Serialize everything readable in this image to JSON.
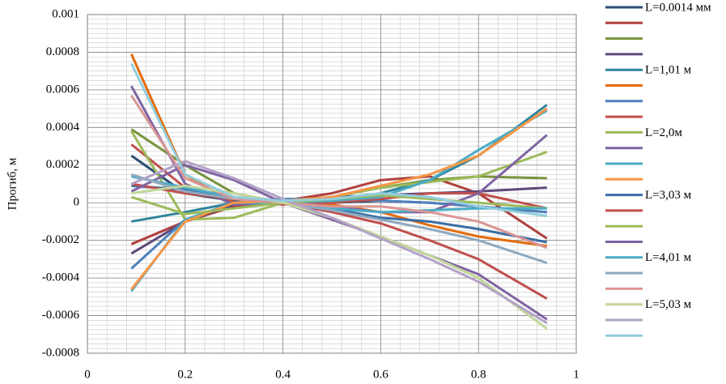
{
  "chart_data": {
    "type": "line",
    "y_label": "Прогиб, м",
    "x": [
      0.09,
      0.2,
      0.3,
      0.4,
      0.5,
      0.6,
      0.7,
      0.8,
      0.94
    ],
    "xlim": [
      0,
      1
    ],
    "xticks": [
      0,
      0.2,
      0.4,
      0.6,
      0.8,
      1
    ],
    "ylim": [
      -0.0008,
      0.001
    ],
    "yticks": [
      -0.0008,
      -0.0006,
      -0.0004,
      -0.0002,
      0,
      0.0002,
      0.0004,
      0.0006,
      0.0008,
      0.001
    ],
    "grid": true,
    "minor_grid": true,
    "legend": "right",
    "series": [
      {
        "name": "L=0.0014 мм",
        "color": "#2c4d75",
        "values": [
          0.00025,
          5e-05,
          1e-05,
          0,
          0,
          1e-05,
          0,
          -2e-05,
          -5e-05
        ]
      },
      {
        "name": null,
        "color": "#b0413e",
        "values": [
          -0.00022,
          -0.0001,
          -2e-05,
          1e-05,
          5e-05,
          0.00012,
          0.00014,
          5e-05,
          -0.00019
        ]
      },
      {
        "name": null,
        "color": "#77933c",
        "values": [
          0.00039,
          0.0002,
          5e-05,
          0,
          3e-05,
          8e-05,
          0.00012,
          0.00014,
          0.00013
        ]
      },
      {
        "name": null,
        "color": "#5f497a",
        "values": [
          -0.00027,
          -0.0001,
          -1e-05,
          1e-05,
          3e-05,
          4e-05,
          5e-05,
          6e-05,
          8e-05
        ]
      },
      {
        "name": "L=1,01 м",
        "color": "#31859c",
        "values": [
          -0.0001,
          -5e-05,
          0,
          1e-05,
          2e-05,
          5e-05,
          0.00012,
          0.00025,
          0.00052
        ]
      },
      {
        "name": null,
        "color": "#e46c0a",
        "values": [
          0.00079,
          0.00015,
          0,
          0,
          -1e-05,
          -5e-05,
          -0.00012,
          -0.00018,
          -0.00023
        ]
      },
      {
        "name": null,
        "color": "#4f81bd",
        "values": [
          -0.00035,
          -9e-05,
          0,
          2e-05,
          2e-05,
          1e-05,
          0,
          -2e-05,
          -5e-05
        ]
      },
      {
        "name": null,
        "color": "#c0504d",
        "values": [
          0.00031,
          8e-05,
          0,
          -1e-05,
          0,
          2e-05,
          5e-05,
          5e-05,
          -3e-05
        ]
      },
      {
        "name": "L=2,0м",
        "color": "#9bbb59",
        "values": [
          0.00038,
          -9e-05,
          -8e-05,
          0,
          3e-05,
          8e-05,
          0.00011,
          0.00014,
          0.00027
        ]
      },
      {
        "name": null,
        "color": "#8064a2",
        "values": [
          0.00062,
          0.0001,
          -1e-05,
          0,
          -2e-05,
          -5e-05,
          -5e-05,
          5e-05,
          0.00036
        ]
      },
      {
        "name": null,
        "color": "#4bacc6",
        "values": [
          -0.00047,
          -9e-05,
          0,
          0,
          1e-05,
          3e-05,
          0.00012,
          0.00028,
          0.00049
        ]
      },
      {
        "name": null,
        "color": "#f79646",
        "values": [
          -0.00046,
          -0.0001,
          0,
          1e-05,
          3e-05,
          9e-05,
          0.00015,
          0.00025,
          0.0005
        ]
      },
      {
        "name": "L=3,03 м",
        "color": "#3a6ea5",
        "values": [
          9e-05,
          7e-05,
          3e-05,
          0,
          -3e-05,
          -8e-05,
          -0.0001,
          -0.00014,
          -0.00021
        ]
      },
      {
        "name": null,
        "color": "#c0504d",
        "values": [
          0.0001,
          5e-05,
          2e-05,
          0,
          -5e-05,
          -0.00011,
          -0.0002,
          -0.0003,
          -0.00051
        ]
      },
      {
        "name": null,
        "color": "#9bbb59",
        "values": [
          3e-05,
          -6e-05,
          -3e-05,
          0,
          2e-05,
          4e-05,
          2e-05,
          0,
          -3e-05
        ]
      },
      {
        "name": null,
        "color": "#8064a2",
        "values": [
          6e-05,
          0.0002,
          0.00012,
          0,
          -9e-05,
          -0.00018,
          -0.00028,
          -0.00038,
          -0.00062
        ]
      },
      {
        "name": "L=4,01 м",
        "color": "#4bacc6",
        "values": [
          0.00014,
          8e-05,
          3e-05,
          0,
          -3e-05,
          -5e-05,
          -4e-05,
          -3e-05,
          -3e-05
        ]
      },
      {
        "name": null,
        "color": "#8ea9c1",
        "values": [
          0.00015,
          6e-05,
          2e-05,
          0,
          -4e-05,
          -9e-05,
          -0.00014,
          -0.0002,
          -0.00032
        ]
      },
      {
        "name": null,
        "color": "#d99694",
        "values": [
          0.00057,
          0.00013,
          2e-05,
          0,
          -2e-05,
          -2e-05,
          -5e-05,
          -0.0001,
          -0.00024
        ]
      },
      {
        "name": "L=5,03 м",
        "color": "#c3d69b",
        "values": [
          5e-05,
          9e-05,
          5e-05,
          0,
          -8e-05,
          -0.00018,
          -0.00028,
          -0.0004,
          -0.00067
        ]
      },
      {
        "name": null,
        "color": "#b3a2c7",
        "values": [
          0.0001,
          0.00022,
          0.00013,
          2e-05,
          -8e-05,
          -0.00019,
          -0.0003,
          -0.00042,
          -0.00064
        ]
      },
      {
        "name": null,
        "color": "#93cddd",
        "values": [
          0.00074,
          0.00015,
          3e-05,
          1e-05,
          2e-05,
          5e-05,
          3e-05,
          -2e-05,
          -7e-05
        ]
      }
    ]
  }
}
